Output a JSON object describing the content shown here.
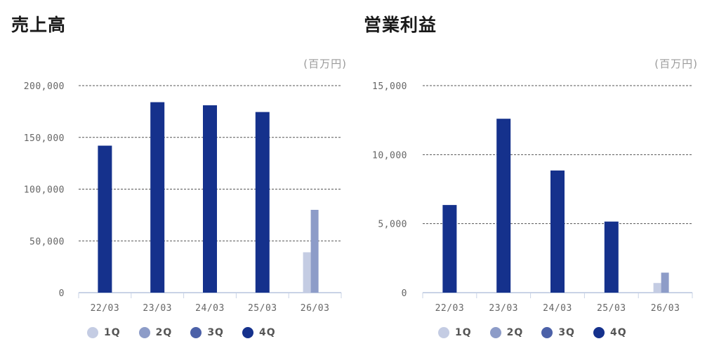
{
  "colors": {
    "1Q": "#c4cce3",
    "2Q": "#8d9cc8",
    "3Q": "#4c61a8",
    "4Q": "#15318c"
  },
  "legend": [
    {
      "key": "1Q",
      "label": "1Q"
    },
    {
      "key": "2Q",
      "label": "2Q"
    },
    {
      "key": "3Q",
      "label": "3Q"
    },
    {
      "key": "4Q",
      "label": "4Q"
    }
  ],
  "chart_data": [
    {
      "type": "bar",
      "title": "売上高",
      "unit": "(百万円)",
      "categories": [
        "22/03",
        "23/03",
        "24/03",
        "25/03",
        "26/03"
      ],
      "ylim": [
        0,
        200000
      ],
      "yticks": [
        0,
        50000,
        100000,
        150000,
        200000
      ],
      "ytick_labels": [
        "0",
        "50,000",
        "100,000",
        "150,000",
        "200,000"
      ],
      "grid": true,
      "legend_position": "bottom",
      "series": [
        {
          "name": "1Q",
          "values": [
            null,
            null,
            null,
            null,
            39000
          ]
        },
        {
          "name": "2Q",
          "values": [
            null,
            null,
            null,
            null,
            80000
          ]
        },
        {
          "name": "3Q",
          "values": [
            null,
            null,
            null,
            null,
            null
          ]
        },
        {
          "name": "4Q",
          "values": [
            142000,
            184000,
            181000,
            174500,
            null
          ]
        }
      ]
    },
    {
      "type": "bar",
      "title": "営業利益",
      "unit": "(百万円)",
      "categories": [
        "22/03",
        "23/03",
        "24/03",
        "25/03",
        "26/03"
      ],
      "ylim": [
        0,
        15000
      ],
      "yticks": [
        0,
        5000,
        10000,
        15000
      ],
      "ytick_labels": [
        "0",
        "5,000",
        "10,000",
        "15,000"
      ],
      "grid": true,
      "legend_position": "bottom",
      "series": [
        {
          "name": "1Q",
          "values": [
            null,
            null,
            null,
            null,
            700
          ]
        },
        {
          "name": "2Q",
          "values": [
            null,
            null,
            null,
            null,
            1450
          ]
        },
        {
          "name": "3Q",
          "values": [
            null,
            null,
            null,
            null,
            null
          ]
        },
        {
          "name": "4Q",
          "values": [
            6350,
            12600,
            8850,
            5150,
            null
          ]
        }
      ]
    }
  ]
}
